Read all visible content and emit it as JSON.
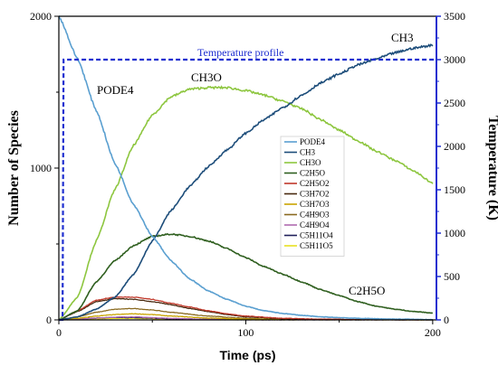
{
  "chart_data": {
    "type": "line",
    "xlabel": "Time (ps)",
    "ylabel": "Number of Species",
    "ylabel_right": "Temperature (K)",
    "xlim": [
      0,
      202
    ],
    "ylim": [
      0,
      2000
    ],
    "ylim_right": [
      0,
      3500
    ],
    "x_ticks": [
      0,
      100,
      200
    ],
    "x_tick_labels": [
      "0",
      "100",
      "200"
    ],
    "y_ticks": [
      0,
      1000,
      2000
    ],
    "y_tick_labels": [
      "0",
      "1000",
      "2000"
    ],
    "y_right_ticks": [
      0,
      500,
      1000,
      1500,
      2000,
      2500,
      3000,
      3500
    ],
    "y_right_tick_labels": [
      "0",
      "500",
      "1000",
      "1500",
      "2000",
      "2500",
      "3000",
      "3500"
    ],
    "legend_position": "center-right",
    "annotations": {
      "temperature": "Temperature profile",
      "pode4": "PODE4",
      "ch3o": "CH3O",
      "ch3": "CH3",
      "c2h5o": "C2H5O"
    },
    "temperature": {
      "x": [
        0,
        2,
        2.5,
        202
      ],
      "values": [
        0,
        0,
        3000,
        3000
      ],
      "color": "#1f2fd0"
    },
    "series": [
      {
        "name": "PODE4",
        "color": "#5a9fd0",
        "x": [
          0,
          10,
          20,
          30,
          40,
          50,
          60,
          70,
          80,
          90,
          100,
          110,
          120,
          130,
          140,
          150,
          160,
          180,
          200
        ],
        "values": [
          2000,
          1720,
          1380,
          1030,
          760,
          550,
          390,
          270,
          190,
          135,
          90,
          60,
          42,
          30,
          20,
          15,
          10,
          5,
          2
        ]
      },
      {
        "name": "CH3",
        "color": "#1d4d7a",
        "x": [
          0,
          10,
          20,
          30,
          40,
          50,
          60,
          70,
          80,
          90,
          100,
          110,
          120,
          130,
          140,
          150,
          160,
          170,
          180,
          190,
          200
        ],
        "values": [
          0,
          20,
          70,
          150,
          300,
          520,
          720,
          880,
          1010,
          1120,
          1230,
          1320,
          1400,
          1480,
          1560,
          1620,
          1680,
          1720,
          1760,
          1790,
          1810
        ]
      },
      {
        "name": "CH3O",
        "color": "#8dc63f",
        "x": [
          0,
          10,
          20,
          30,
          40,
          50,
          60,
          70,
          80,
          90,
          100,
          110,
          120,
          130,
          140,
          150,
          160,
          170,
          180,
          190,
          200
        ],
        "values": [
          0,
          150,
          520,
          860,
          1150,
          1350,
          1470,
          1520,
          1530,
          1530,
          1510,
          1480,
          1440,
          1390,
          1320,
          1250,
          1180,
          1110,
          1050,
          980,
          900
        ]
      },
      {
        "name": "C2H5O",
        "color": "#2f5f1f",
        "x": [
          0,
          10,
          20,
          30,
          40,
          50,
          60,
          70,
          80,
          90,
          100,
          110,
          120,
          130,
          140,
          150,
          160,
          170,
          180,
          190,
          200
        ],
        "values": [
          0,
          60,
          250,
          390,
          490,
          550,
          565,
          550,
          520,
          470,
          410,
          350,
          300,
          250,
          200,
          160,
          120,
          90,
          70,
          55,
          45
        ]
      },
      {
        "name": "C2H5O2",
        "color": "#c0392b",
        "x": [
          0,
          10,
          20,
          30,
          40,
          50,
          60,
          70,
          80,
          90,
          100,
          120,
          140,
          160,
          200
        ],
        "values": [
          0,
          60,
          130,
          150,
          150,
          135,
          110,
          85,
          60,
          40,
          25,
          10,
          5,
          2,
          0
        ]
      },
      {
        "name": "C3H7O2",
        "color": "#4a2a10",
        "x": [
          0,
          10,
          20,
          30,
          40,
          50,
          60,
          70,
          80,
          90,
          100,
          120,
          140,
          160,
          200
        ],
        "values": [
          0,
          55,
          120,
          140,
          135,
          120,
          100,
          75,
          55,
          35,
          20,
          8,
          3,
          1,
          0
        ]
      },
      {
        "name": "C3H7O3",
        "color": "#c9a400",
        "x": [
          0,
          10,
          20,
          30,
          40,
          50,
          60,
          80,
          100,
          120,
          200
        ],
        "values": [
          0,
          10,
          25,
          35,
          40,
          35,
          25,
          12,
          5,
          2,
          0
        ]
      },
      {
        "name": "C4H9O3",
        "color": "#8a6a20",
        "x": [
          0,
          10,
          20,
          30,
          40,
          50,
          60,
          80,
          100,
          120,
          200
        ],
        "values": [
          0,
          20,
          50,
          70,
          75,
          65,
          50,
          25,
          10,
          4,
          0
        ]
      },
      {
        "name": "C4H9O4",
        "color": "#b06ab0",
        "x": [
          0,
          10,
          20,
          30,
          40,
          50,
          60,
          80,
          100,
          200
        ],
        "values": [
          0,
          5,
          12,
          18,
          20,
          15,
          10,
          4,
          1,
          0
        ]
      },
      {
        "name": "C5H11O4",
        "color": "#20205a",
        "x": [
          0,
          10,
          20,
          30,
          40,
          50,
          60,
          80,
          100,
          200
        ],
        "values": [
          0,
          5,
          12,
          16,
          15,
          12,
          8,
          3,
          1,
          0
        ]
      },
      {
        "name": "C5H11O5",
        "color": "#e8e020",
        "x": [
          0,
          10,
          20,
          30,
          40,
          50,
          60,
          80,
          100,
          200
        ],
        "values": [
          0,
          3,
          8,
          10,
          10,
          8,
          5,
          2,
          1,
          0
        ]
      }
    ]
  }
}
